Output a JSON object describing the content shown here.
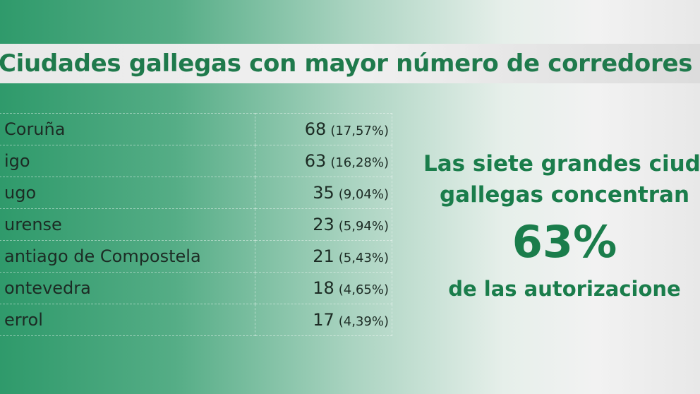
{
  "header": {
    "title": "Ciudades gallegas con mayor número de corredores"
  },
  "table": {
    "rows": [
      [
        "Coruña",
        68,
        "(17,57%)"
      ],
      [
        "igo",
        63,
        "(16,28%)"
      ],
      [
        "ugo",
        35,
        "(9,04%)"
      ],
      [
        "urense",
        23,
        "(5,94%)"
      ],
      [
        "antiago de Compostela",
        21,
        "(5,43%)"
      ],
      [
        "ontevedra",
        18,
        "(4,65%)"
      ],
      [
        "errol",
        17,
        "(4,39%)"
      ]
    ]
  },
  "highlight": {
    "line1": "Las siete grandes ciuda",
    "line2": "gallegas concentran",
    "big": "63%",
    "line3": "de las autorizacione"
  }
}
